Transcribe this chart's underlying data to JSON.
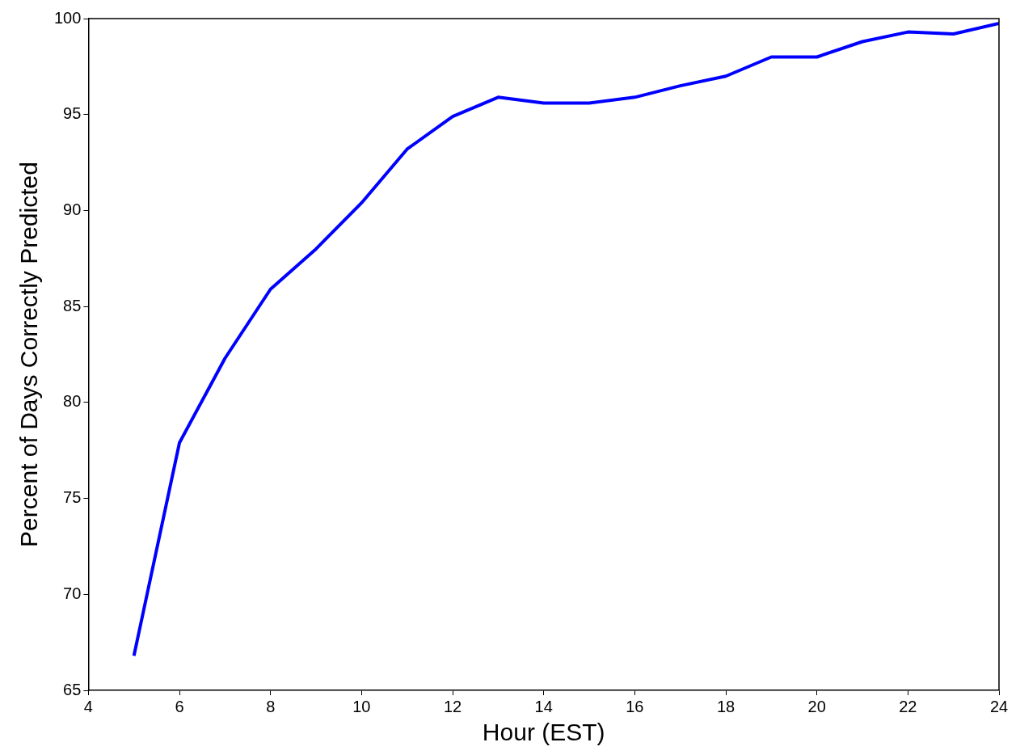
{
  "chart_data": {
    "type": "line",
    "xlabel": "Hour (EST)",
    "ylabel": "Percent of Days Correctly Predicted",
    "x": [
      5,
      6,
      7,
      8,
      9,
      10,
      11,
      12,
      13,
      14,
      15,
      16,
      17,
      18,
      19,
      20,
      21,
      22,
      23,
      24
    ],
    "series": [
      {
        "color": "#0000ff",
        "values": [
          66.8,
          77.9,
          82.3,
          85.9,
          88.0,
          90.4,
          93.2,
          94.9,
          95.9,
          95.6,
          95.6,
          95.9,
          96.5,
          97.0,
          98.0,
          98.0,
          98.8,
          99.3,
          99.2,
          99.75
        ]
      }
    ],
    "xlim": [
      4,
      24
    ],
    "xticks": [
      4,
      6,
      8,
      10,
      12,
      14,
      16,
      18,
      20,
      22,
      24
    ],
    "ylim": [
      65,
      100
    ],
    "yticks": [
      65,
      70,
      75,
      80,
      85,
      90,
      95,
      100
    ],
    "grid": false,
    "legend": false,
    "marker": "none",
    "line_style": "solid"
  }
}
